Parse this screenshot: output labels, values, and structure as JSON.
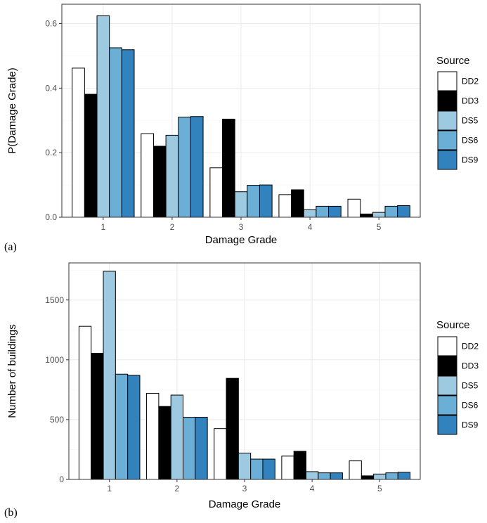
{
  "colors": {
    "DD2": "#ffffff",
    "DD3": "#000000",
    "DS5": "#9ecae1",
    "DS6": "#6baed6",
    "DS9": "#3182bd",
    "panel_border": "#333333",
    "grid_major": "#ebebeb",
    "grid_minor": "#f5f5f5"
  },
  "legend_title": "Source",
  "chart_data": [
    {
      "type": "bar",
      "panel_label": "(a)",
      "xlabel": "Damage Grade",
      "ylabel": "P(Damage Grade)",
      "categories": [
        "1",
        "2",
        "3",
        "4",
        "5"
      ],
      "ylim": [
        0,
        0.66
      ],
      "yticks": [
        0.0,
        0.2,
        0.4,
        0.6
      ],
      "ytick_labels": [
        "0.0",
        "0.2",
        "0.4",
        "0.6"
      ],
      "grid": true,
      "legend_position": "right",
      "series": [
        {
          "name": "DD2",
          "values": [
            0.462,
            0.259,
            0.153,
            0.07,
            0.056
          ]
        },
        {
          "name": "DD3",
          "values": [
            0.381,
            0.22,
            0.304,
            0.085,
            0.01
          ]
        },
        {
          "name": "DS5",
          "values": [
            0.624,
            0.254,
            0.079,
            0.023,
            0.015
          ]
        },
        {
          "name": "DS6",
          "values": [
            0.525,
            0.31,
            0.099,
            0.034,
            0.034
          ]
        },
        {
          "name": "DS9",
          "values": [
            0.519,
            0.312,
            0.1,
            0.034,
            0.036
          ]
        }
      ]
    },
    {
      "type": "bar",
      "panel_label": "(b)",
      "xlabel": "Damage Grade",
      "ylabel": "Number of buildings",
      "categories": [
        "1",
        "2",
        "3",
        "4",
        "5"
      ],
      "ylim": [
        0,
        1810
      ],
      "yticks": [
        0,
        500,
        1000,
        1500
      ],
      "ytick_labels": [
        "0",
        "500",
        "1000",
        "1500"
      ],
      "grid": true,
      "legend_position": "right",
      "series": [
        {
          "name": "DD2",
          "values": [
            1280,
            720,
            425,
            195,
            155
          ]
        },
        {
          "name": "DD3",
          "values": [
            1055,
            610,
            845,
            235,
            30
          ]
        },
        {
          "name": "DS5",
          "values": [
            1740,
            705,
            220,
            65,
            45
          ]
        },
        {
          "name": "DS6",
          "values": [
            880,
            520,
            170,
            55,
            55
          ]
        },
        {
          "name": "DS9",
          "values": [
            870,
            520,
            170,
            55,
            60
          ]
        }
      ]
    }
  ]
}
